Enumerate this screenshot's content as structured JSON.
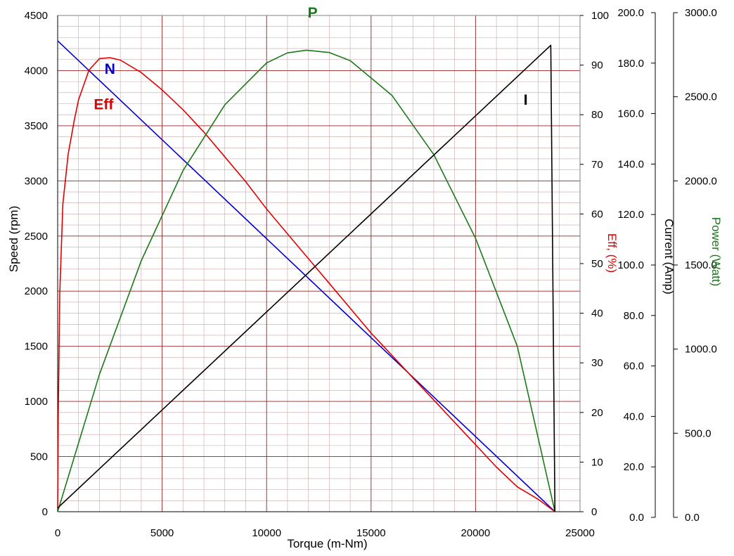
{
  "chart_data": {
    "type": "line",
    "title": "",
    "grid": true,
    "x_axis": {
      "label": "Torque (m-Nm)",
      "min": 0,
      "max": 25000,
      "major": 5000,
      "minor": 1000,
      "tick_labels": [
        "0",
        "5000",
        "10000",
        "15000",
        "20000",
        "25000"
      ]
    },
    "y_axes": {
      "speed": {
        "label": "Speed (rpm)",
        "side": "left",
        "min": 0,
        "max": 4500,
        "major": 500,
        "minor": 100,
        "tick_labels": [
          "0",
          "500",
          "1000",
          "1500",
          "2000",
          "2500",
          "3000",
          "3500",
          "4000",
          "4500"
        ]
      },
      "efficiency": {
        "label": "Eff, (%)",
        "side": "right",
        "min": 0,
        "max": 100,
        "tick_labels": [
          "0",
          "10",
          "20",
          "30",
          "40",
          "50",
          "60",
          "70",
          "80",
          "90",
          "100"
        ]
      },
      "current": {
        "label": "Current (Amp)",
        "side": "right",
        "min": 0,
        "max": 200,
        "tick_labels": [
          "0.0",
          "20.0",
          "40.0",
          "60.0",
          "80.0",
          "100.0",
          "120.0",
          "140.0",
          "160.0",
          "180.0",
          "200.0"
        ]
      },
      "power": {
        "label": "Power (Watt)",
        "side": "right",
        "min": 0,
        "max": 3000,
        "tick_labels": [
          "0.0",
          "500.0",
          "1000.0",
          "1500.0",
          "2000.0",
          "2500.0",
          "3000.0"
        ]
      }
    },
    "series": [
      {
        "name": "N",
        "axis": "speed",
        "color": "#0000cc",
        "x": [
          0,
          23800
        ],
        "y": [
          4270,
          0
        ]
      },
      {
        "name": "Eff",
        "axis": "efficiency",
        "color": "#e00000",
        "x": [
          0,
          30,
          100,
          250,
          500,
          800,
          1000,
          1500,
          2000,
          2500,
          3000,
          4000,
          5000,
          6000,
          7000,
          8000,
          9000,
          10000,
          11000,
          12000,
          13000,
          14000,
          15000,
          16000,
          17000,
          18000,
          19000,
          20000,
          21000,
          22000,
          23000,
          23800
        ],
        "y": [
          0,
          20,
          44,
          62,
          72,
          79,
          83,
          89,
          91.3,
          91.5,
          91,
          88.5,
          85,
          81,
          76.5,
          71.5,
          66.5,
          61,
          56,
          51,
          46,
          41,
          36,
          31.5,
          27,
          22.5,
          18,
          13.5,
          9,
          5,
          2.5,
          0
        ]
      },
      {
        "name": "P",
        "axis": "power",
        "color": "#1a7a1a",
        "x": [
          0,
          2000,
          4000,
          6000,
          8000,
          10000,
          11000,
          11900,
          13000,
          14000,
          16000,
          18000,
          20000,
          22000,
          23800
        ],
        "y": [
          0,
          830,
          1517,
          2062,
          2460,
          2713,
          2774,
          2790,
          2776,
          2727,
          2517,
          2159,
          1653,
          1000,
          0
        ]
      },
      {
        "name": "I",
        "axis": "current",
        "color": "#000000",
        "x": [
          0,
          23600,
          23800
        ],
        "y": [
          1.5,
          188,
          0
        ]
      }
    ],
    "series_labels": [
      {
        "text": "N",
        "color": "#0000cc",
        "x": 2500,
        "y_axis": "speed",
        "y": 3970
      },
      {
        "text": "Eff",
        "color": "#e00000",
        "x": 2200,
        "y_axis": "speed",
        "y": 3650
      },
      {
        "text": "P",
        "color": "#1a7a1a",
        "x": 12200,
        "y_axis": "speed",
        "y": 4480
      },
      {
        "text": "I",
        "color": "#000000",
        "x": 22400,
        "y_axis": "speed",
        "y": 3690
      }
    ]
  }
}
